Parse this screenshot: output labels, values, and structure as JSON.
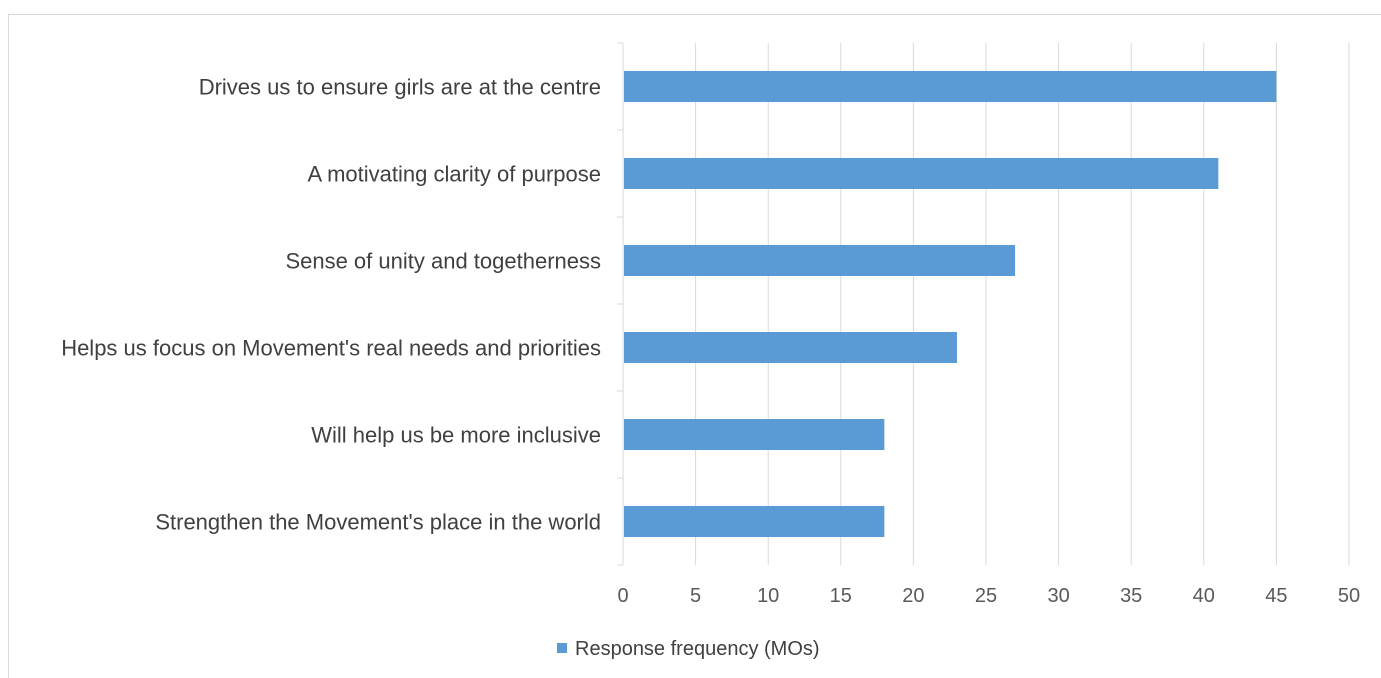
{
  "chart_data": {
    "type": "bar",
    "orientation": "horizontal",
    "title": "",
    "xlabel": "",
    "ylabel": "",
    "categories": [
      "Drives us to ensure girls are at the centre",
      "A motivating clarity of purpose",
      "Sense of unity and togetherness",
      "Helps us focus on Movement's real needs and priorities",
      "Will help us be more inclusive",
      "Strengthen the Movement's place in the world"
    ],
    "series": [
      {
        "name": "Response frequency (MOs)",
        "values": [
          45,
          41,
          27,
          23,
          18,
          18
        ],
        "color": "#5b9bd5"
      }
    ],
    "xlim": [
      0,
      50
    ],
    "x_ticks": [
      "0",
      "5",
      "10",
      "15",
      "20",
      "25",
      "30",
      "35",
      "40",
      "45",
      "50"
    ],
    "grid": true,
    "legend_position": "bottom"
  }
}
